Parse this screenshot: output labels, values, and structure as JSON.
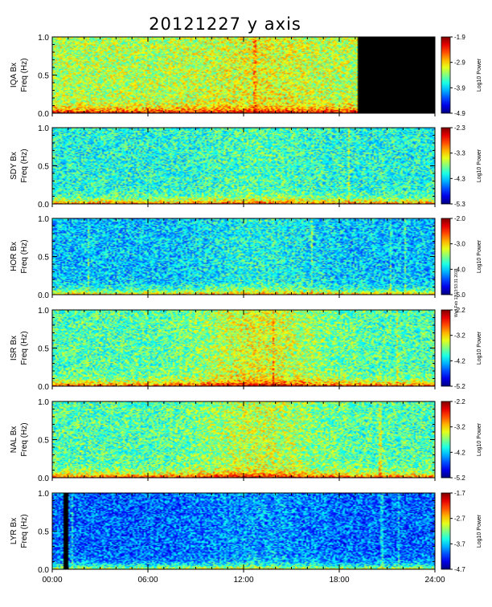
{
  "title": "20121227 y axis",
  "side_note": "Wed Feb 13 13:53:31 2013",
  "chart_data": [
    {
      "type": "heatmap",
      "station_label": "IQA Bx",
      "ylabel": "Freq (Hz)",
      "ylim": [
        0,
        1.0
      ],
      "yticks": [
        "0.0",
        "0.5",
        "1.0"
      ],
      "xlim_hours": [
        0,
        24
      ],
      "colorbar_label": "Log10 Power",
      "colorbar_ticks": [
        "-1.9",
        "-2.9",
        "-3.9",
        "-4.9"
      ],
      "color_range": [
        -4.9,
        -1.9
      ],
      "no_data_hours": [
        [
          19.2,
          24.0
        ]
      ],
      "vertical_features_hours": [
        12.7
      ],
      "base_level": 0.55,
      "midday_enhancement": 0.05
    },
    {
      "type": "heatmap",
      "station_label": "SDY Bx",
      "ylabel": "Freq (Hz)",
      "ylim": [
        0,
        1.0
      ],
      "yticks": [
        "0.0",
        "0.5",
        "1.0"
      ],
      "xlim_hours": [
        0,
        24
      ],
      "colorbar_label": "Log10 Power",
      "colorbar_ticks": [
        "-2.3",
        "-3.3",
        "-4.3",
        "-5.3"
      ],
      "color_range": [
        -5.3,
        -2.3
      ],
      "no_data_hours": [],
      "vertical_features_hours": [
        18.6
      ],
      "base_level": 0.4,
      "midday_enhancement": 0.05
    },
    {
      "type": "heatmap",
      "station_label": "HOR Bx",
      "ylabel": "Freq (Hz)",
      "ylim": [
        0,
        1.0
      ],
      "yticks": [
        "0.0",
        "0.5",
        "1.0"
      ],
      "xlim_hours": [
        0,
        24
      ],
      "colorbar_label": "Log10 Power",
      "colorbar_ticks": [
        "-2.0",
        "-3.0",
        "-4.0",
        "-5.0"
      ],
      "color_range": [
        -5.0,
        -2.0
      ],
      "no_data_hours": [],
      "vertical_features_hours": [
        2.2,
        16.3,
        21.3,
        22.2
      ],
      "base_level": 0.32,
      "midday_enhancement": 0.08
    },
    {
      "type": "heatmap",
      "station_label": "ISR Bx",
      "ylabel": "Freq (Hz)",
      "ylim": [
        0,
        1.0
      ],
      "yticks": [
        "0.0",
        "0.5",
        "1.0"
      ],
      "xlim_hours": [
        0,
        24
      ],
      "colorbar_label": "Log10 Power",
      "colorbar_ticks": [
        "-2.2",
        "-3.2",
        "-4.2",
        "-5.2"
      ],
      "color_range": [
        -5.2,
        -2.2
      ],
      "no_data_hours": [],
      "vertical_features_hours": [
        13.9,
        21.7
      ],
      "base_level": 0.45,
      "midday_enhancement": 0.15
    },
    {
      "type": "heatmap",
      "station_label": "NAL Bx",
      "ylabel": "Freq (Hz)",
      "ylim": [
        0,
        1.0
      ],
      "yticks": [
        "0.0",
        "0.5",
        "1.0"
      ],
      "xlim_hours": [
        0,
        24
      ],
      "colorbar_label": "Log10 Power",
      "colorbar_ticks": [
        "-2.2",
        "-3.2",
        "-4.2",
        "-5.2"
      ],
      "color_range": [
        -5.2,
        -2.2
      ],
      "no_data_hours": [],
      "vertical_features_hours": [
        20.6
      ],
      "base_level": 0.45,
      "midday_enhancement": 0.12
    },
    {
      "type": "heatmap",
      "station_label": "LYR Bx",
      "ylabel": "Freq (Hz)",
      "ylim": [
        0,
        1.0
      ],
      "yticks": [
        "0.0",
        "0.5",
        "1.0"
      ],
      "xlim_hours": [
        0,
        24
      ],
      "colorbar_label": "Log10 Power",
      "colorbar_ticks": [
        "-1.7",
        "-2.7",
        "-3.7",
        "-4.7"
      ],
      "color_range": [
        -4.7,
        -1.7
      ],
      "no_data_hours": [
        [
          0.7,
          1.0
        ]
      ],
      "vertical_features_hours": [
        1.2,
        20.7,
        21.8
      ],
      "base_level": 0.22,
      "midday_enhancement": 0.06
    }
  ],
  "xaxis": {
    "tick_labels": [
      "00:00",
      "06:00",
      "12:00",
      "18:00",
      "24:00"
    ],
    "tick_hours": [
      0,
      6,
      12,
      18,
      24
    ]
  }
}
